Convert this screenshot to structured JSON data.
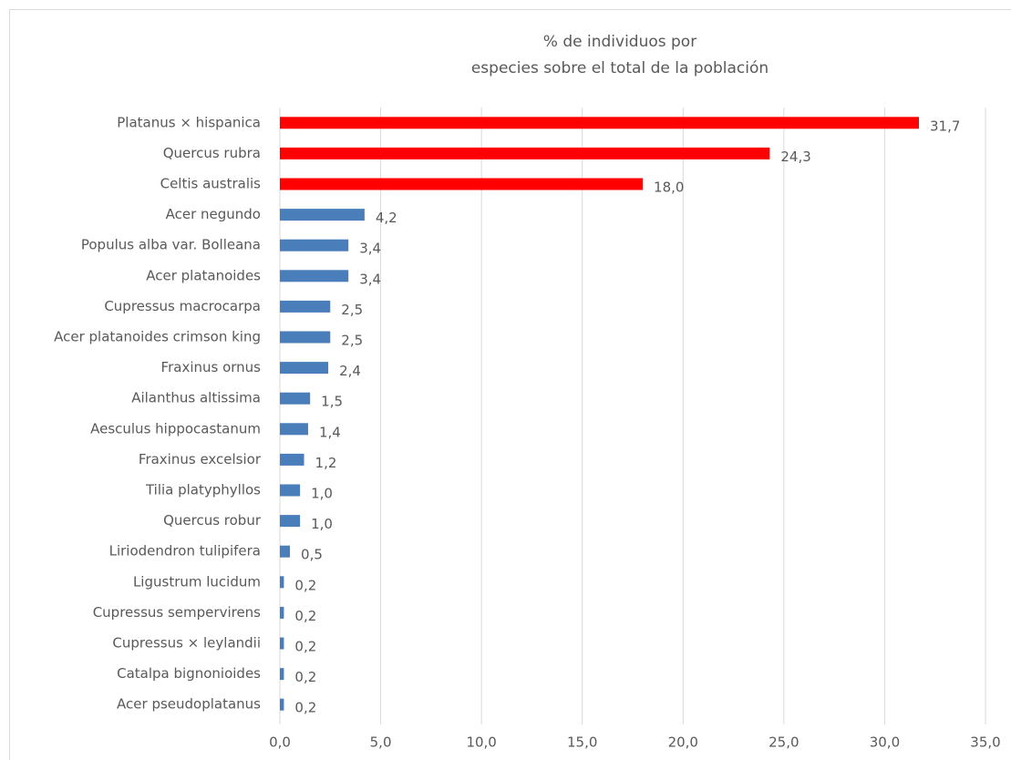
{
  "chart_data": {
    "type": "bar",
    "orientation": "horizontal",
    "title": [
      "% de individuos por",
      "especies sobre el total de la población"
    ],
    "categories": [
      "Platanus × hispanica",
      "Quercus rubra",
      "Celtis australis",
      "Acer negundo",
      "Populus alba var. Bolleana",
      "Acer platanoides",
      "Cupressus macrocarpa",
      "Acer platanoides crimson king",
      "Fraxinus ornus",
      "Ailanthus altissima",
      "Aesculus hippocastanum",
      "Fraxinus excelsior",
      "Tilia platyphyllos",
      "Quercus robur",
      "Liriodendron tulipifera",
      "Ligustrum lucidum",
      "Cupressus sempervirens",
      "Cupressus × leylandii",
      "Catalpa bignonioides",
      "Acer pseudoplatanus"
    ],
    "values": [
      31.7,
      24.3,
      18.0,
      4.2,
      3.4,
      3.4,
      2.5,
      2.5,
      2.4,
      1.5,
      1.4,
      1.2,
      1.0,
      1.0,
      0.5,
      0.2,
      0.2,
      0.2,
      0.2,
      0.2
    ],
    "value_labels": [
      "31,7",
      "24,3",
      "18,0",
      "4,2",
      "3,4",
      "3,4",
      "2,5",
      "2,5",
      "2,4",
      "1,5",
      "1,4",
      "1,2",
      "1,0",
      "1,0",
      "0,5",
      "0,2",
      "0,2",
      "0,2",
      "0,2",
      "0,2"
    ],
    "colors": [
      "#ff0000",
      "#ff0000",
      "#ff0000",
      "#4a7ebb",
      "#4a7ebb",
      "#4a7ebb",
      "#4a7ebb",
      "#4a7ebb",
      "#4a7ebb",
      "#4a7ebb",
      "#4a7ebb",
      "#4a7ebb",
      "#4a7ebb",
      "#4a7ebb",
      "#4a7ebb",
      "#4a7ebb",
      "#4a7ebb",
      "#4a7ebb",
      "#4a7ebb",
      "#4a7ebb"
    ],
    "xlim": [
      0,
      35
    ],
    "xticks": [
      {
        "value": 0,
        "label": "0,0"
      },
      {
        "value": 5,
        "label": "5,0"
      },
      {
        "value": 10,
        "label": "10,0"
      },
      {
        "value": 15,
        "label": "15,0"
      },
      {
        "value": 20,
        "label": "20,0"
      },
      {
        "value": 25,
        "label": "25,0"
      },
      {
        "value": 30,
        "label": "30,0"
      },
      {
        "value": 35,
        "label": "35,0"
      }
    ],
    "grid": true
  }
}
